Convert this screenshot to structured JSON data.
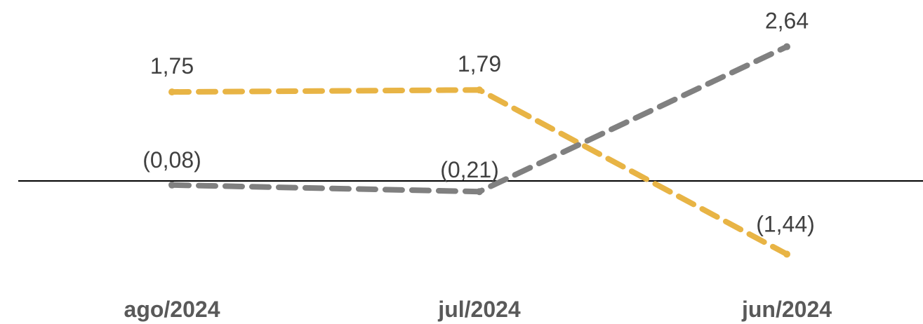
{
  "chart_data": {
    "type": "line",
    "categories": [
      "ago/2024",
      "jul/2024",
      "jun/2024"
    ],
    "series": [
      {
        "values": [
          1.75,
          1.79,
          -1.44
        ],
        "labels": [
          "1,75",
          "1,79",
          "(1,44)"
        ],
        "color": "#E8B445",
        "dash": "dashed"
      },
      {
        "values": [
          -0.08,
          -0.21,
          2.64
        ],
        "labels": [
          "(0,08)",
          "(0,21)",
          "2,64"
        ],
        "color": "#808080",
        "dash": "dashed"
      }
    ],
    "baseline": 0,
    "grid": false,
    "legend": "none"
  }
}
